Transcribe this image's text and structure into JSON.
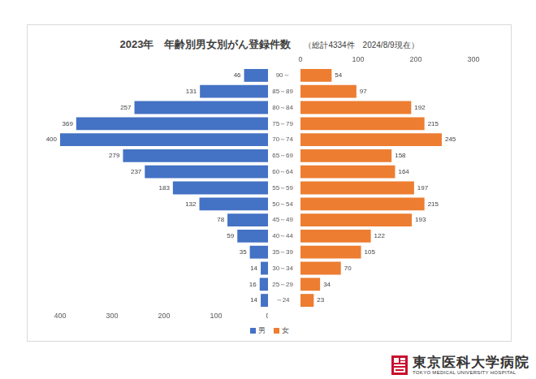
{
  "chart_data": {
    "type": "bar",
    "orientation": "horizontal",
    "title": "2023年　年齢別男女別がん登録件数",
    "subtitle": "（総計4334件　2024/8/9現在）",
    "categories": [
      "90～",
      "85～89",
      "80～84",
      "75～79",
      "70～74",
      "65～69",
      "60～64",
      "55～59",
      "50～54",
      "45～49",
      "40～44",
      "35～39",
      "30～34",
      "25～29",
      "～24"
    ],
    "series": [
      {
        "name": "男",
        "color": "#4472c4",
        "values": [
          46,
          131,
          257,
          369,
          400,
          279,
          237,
          183,
          132,
          78,
          59,
          35,
          14,
          16,
          14
        ]
      },
      {
        "name": "女",
        "color": "#ed7d31",
        "axis": "y2",
        "values": [
          54,
          97,
          192,
          215,
          245,
          158,
          164,
          197,
          215,
          193,
          122,
          105,
          70,
          34,
          23
        ]
      }
    ],
    "ylim": [
      400,
      0
    ],
    "yticks": [
      0,
      100,
      200,
      300,
      400
    ],
    "y2lim": [
      0,
      300
    ],
    "y2ticks": [
      0,
      100,
      200,
      300
    ],
    "grid": false,
    "legend": "bottom",
    "data_labels": true
  },
  "logo": {
    "text": "東京医科大学病院",
    "subtext": "TOKYO MEDICAL UNIVERSITY HOSPITAL"
  }
}
